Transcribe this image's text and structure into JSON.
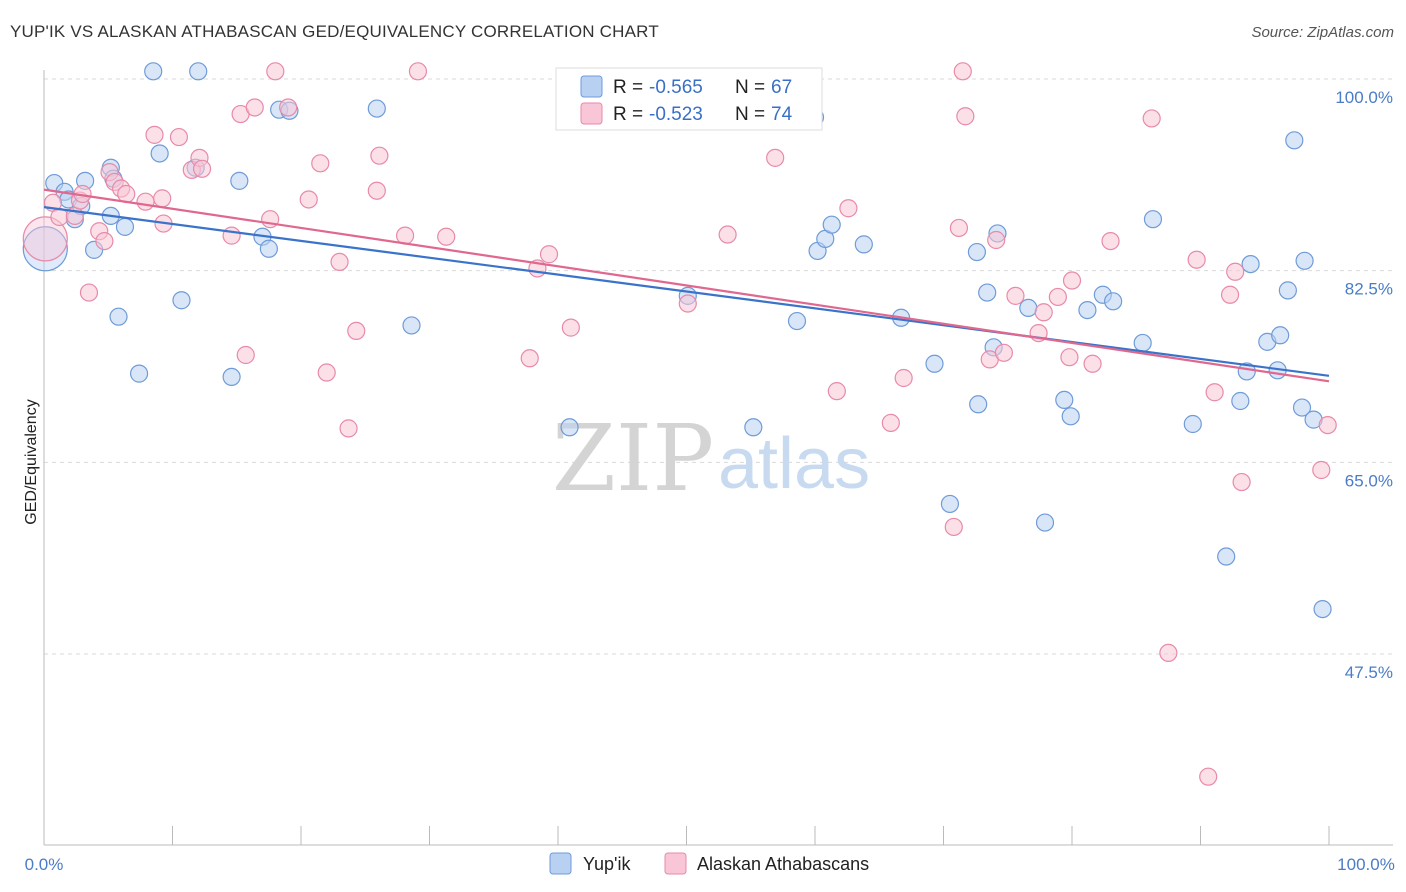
{
  "header": {
    "title": "YUP'IK VS ALASKAN ATHABASCAN GED/EQUIVALENCY CORRELATION CHART",
    "source": "Source: ZipAtlas.com"
  },
  "watermark": {
    "zip": "ZIP",
    "atlas": "atlas"
  },
  "colors": {
    "blue_fill": "#b8d1f3",
    "blue_stroke": "#6f9bd8",
    "blue_line": "#3a73c9",
    "pink_fill": "#f8c6d6",
    "pink_stroke": "#e88aa9",
    "pink_line": "#e0688f",
    "grid": "#d9d9d9",
    "tick_label": "#4a7cc7"
  },
  "chart_data": {
    "type": "scatter",
    "title": "YUP'IK VS ALASKAN ATHABASCAN GED/EQUIVALENCY CORRELATION CHART",
    "xlabel": "",
    "ylabel": "GED/Equivalency",
    "xlim": [
      0,
      100
    ],
    "ylim": [
      28,
      102
    ],
    "x_tick_labels": [
      "0.0%",
      "100.0%"
    ],
    "y_ticks": [
      47.5,
      65.0,
      82.5,
      100.0
    ],
    "y_tick_labels": [
      "47.5%",
      "65.0%",
      "82.5%",
      "100.0%"
    ],
    "grid": true,
    "legend": {
      "position": "top-center",
      "entries": [
        {
          "r_label": "R =",
          "r_value": "-0.565",
          "n_label": "N =",
          "n_value": "67"
        },
        {
          "r_label": "R =",
          "r_value": "-0.523",
          "n_label": "N =",
          "n_value": "74"
        }
      ]
    },
    "series": [
      {
        "name": "Yup'ik",
        "r": -0.565,
        "n": 67,
        "trend": {
          "x": [
            0,
            100
          ],
          "y": [
            88.3,
            72.9
          ]
        },
        "points": [
          {
            "x": 0.1,
            "y": 84.5,
            "big": true
          },
          {
            "x": 0.8,
            "y": 90.5
          },
          {
            "x": 1.6,
            "y": 89.7
          },
          {
            "x": 1.9,
            "y": 89.0
          },
          {
            "x": 2.4,
            "y": 87.2
          },
          {
            "x": 2.9,
            "y": 88.4
          },
          {
            "x": 3.2,
            "y": 90.7
          },
          {
            "x": 3.9,
            "y": 84.4
          },
          {
            "x": 5.2,
            "y": 87.5
          },
          {
            "x": 5.2,
            "y": 91.9
          },
          {
            "x": 5.4,
            "y": 90.9
          },
          {
            "x": 6.3,
            "y": 86.5
          },
          {
            "x": 5.8,
            "y": 78.3
          },
          {
            "x": 7.4,
            "y": 73.1
          },
          {
            "x": 8.5,
            "y": 100.7
          },
          {
            "x": 9.0,
            "y": 93.2
          },
          {
            "x": 10.7,
            "y": 79.8
          },
          {
            "x": 11.8,
            "y": 91.9
          },
          {
            "x": 12.0,
            "y": 100.7
          },
          {
            "x": 14.6,
            "y": 72.8
          },
          {
            "x": 15.2,
            "y": 90.7
          },
          {
            "x": 17.0,
            "y": 85.6
          },
          {
            "x": 17.5,
            "y": 84.5
          },
          {
            "x": 18.3,
            "y": 97.2
          },
          {
            "x": 19.1,
            "y": 97.1
          },
          {
            "x": 25.9,
            "y": 97.3
          },
          {
            "x": 28.6,
            "y": 77.5
          },
          {
            "x": 40.9,
            "y": 68.2
          },
          {
            "x": 50.1,
            "y": 80.2
          },
          {
            "x": 55.2,
            "y": 68.2
          },
          {
            "x": 58.6,
            "y": 77.9
          },
          {
            "x": 60.0,
            "y": 96.5
          },
          {
            "x": 60.2,
            "y": 84.3
          },
          {
            "x": 60.8,
            "y": 85.4
          },
          {
            "x": 61.3,
            "y": 86.7
          },
          {
            "x": 63.8,
            "y": 84.9
          },
          {
            "x": 66.7,
            "y": 78.2
          },
          {
            "x": 69.3,
            "y": 74.0
          },
          {
            "x": 72.6,
            "y": 84.2
          },
          {
            "x": 70.5,
            "y": 61.2
          },
          {
            "x": 72.7,
            "y": 70.3
          },
          {
            "x": 73.4,
            "y": 80.5
          },
          {
            "x": 73.9,
            "y": 75.5
          },
          {
            "x": 74.2,
            "y": 85.9
          },
          {
            "x": 76.6,
            "y": 79.1
          },
          {
            "x": 77.9,
            "y": 59.5
          },
          {
            "x": 79.4,
            "y": 70.7
          },
          {
            "x": 79.9,
            "y": 69.2
          },
          {
            "x": 81.2,
            "y": 78.9
          },
          {
            "x": 82.4,
            "y": 80.3
          },
          {
            "x": 83.2,
            "y": 79.7
          },
          {
            "x": 85.5,
            "y": 75.9
          },
          {
            "x": 86.3,
            "y": 87.2
          },
          {
            "x": 89.4,
            "y": 68.5
          },
          {
            "x": 92.0,
            "y": 56.4
          },
          {
            "x": 93.1,
            "y": 70.6
          },
          {
            "x": 93.6,
            "y": 73.3
          },
          {
            "x": 93.9,
            "y": 83.1
          },
          {
            "x": 95.2,
            "y": 76.0
          },
          {
            "x": 96.0,
            "y": 73.4
          },
          {
            "x": 96.2,
            "y": 76.6
          },
          {
            "x": 96.8,
            "y": 80.7
          },
          {
            "x": 97.3,
            "y": 94.4
          },
          {
            "x": 97.9,
            "y": 70.0
          },
          {
            "x": 98.1,
            "y": 83.4
          },
          {
            "x": 98.8,
            "y": 68.9
          },
          {
            "x": 99.5,
            "y": 51.6
          }
        ]
      },
      {
        "name": "Alaskan Athabascans",
        "r": -0.523,
        "n": 74,
        "trend": {
          "x": [
            0,
            100
          ],
          "y": [
            89.9,
            72.4
          ]
        },
        "points": [
          {
            "x": 0.1,
            "y": 85.4,
            "big": true
          },
          {
            "x": 0.7,
            "y": 88.7
          },
          {
            "x": 1.2,
            "y": 87.4
          },
          {
            "x": 2.4,
            "y": 87.5
          },
          {
            "x": 2.8,
            "y": 88.9
          },
          {
            "x": 3.0,
            "y": 89.5
          },
          {
            "x": 3.5,
            "y": 80.5
          },
          {
            "x": 4.3,
            "y": 86.1
          },
          {
            "x": 4.7,
            "y": 85.2
          },
          {
            "x": 5.1,
            "y": 91.5
          },
          {
            "x": 5.5,
            "y": 90.6
          },
          {
            "x": 6.0,
            "y": 90.0
          },
          {
            "x": 6.4,
            "y": 89.5
          },
          {
            "x": 7.9,
            "y": 88.8
          },
          {
            "x": 8.6,
            "y": 94.9
          },
          {
            "x": 9.2,
            "y": 89.1
          },
          {
            "x": 9.3,
            "y": 86.8
          },
          {
            "x": 10.5,
            "y": 94.7
          },
          {
            "x": 11.5,
            "y": 91.7
          },
          {
            "x": 12.1,
            "y": 92.8
          },
          {
            "x": 12.3,
            "y": 91.8
          },
          {
            "x": 14.6,
            "y": 85.7
          },
          {
            "x": 15.3,
            "y": 96.8
          },
          {
            "x": 15.7,
            "y": 74.8
          },
          {
            "x": 16.4,
            "y": 97.4
          },
          {
            "x": 17.6,
            "y": 87.2
          },
          {
            "x": 18.0,
            "y": 100.7
          },
          {
            "x": 19.0,
            "y": 97.4
          },
          {
            "x": 20.6,
            "y": 89.0
          },
          {
            "x": 21.5,
            "y": 92.3
          },
          {
            "x": 22.0,
            "y": 73.2
          },
          {
            "x": 23.0,
            "y": 83.3
          },
          {
            "x": 23.7,
            "y": 68.1
          },
          {
            "x": 24.3,
            "y": 77.0
          },
          {
            "x": 25.9,
            "y": 89.8
          },
          {
            "x": 26.1,
            "y": 93.0
          },
          {
            "x": 28.1,
            "y": 85.7
          },
          {
            "x": 29.1,
            "y": 100.7
          },
          {
            "x": 31.3,
            "y": 85.6
          },
          {
            "x": 37.8,
            "y": 74.5
          },
          {
            "x": 38.4,
            "y": 82.7
          },
          {
            "x": 39.3,
            "y": 84.0
          },
          {
            "x": 41.0,
            "y": 77.3
          },
          {
            "x": 50.1,
            "y": 79.5
          },
          {
            "x": 53.2,
            "y": 85.8
          },
          {
            "x": 56.9,
            "y": 92.8
          },
          {
            "x": 61.7,
            "y": 71.5
          },
          {
            "x": 62.6,
            "y": 88.2
          },
          {
            "x": 65.9,
            "y": 68.6
          },
          {
            "x": 66.9,
            "y": 72.7
          },
          {
            "x": 70.8,
            "y": 59.1
          },
          {
            "x": 71.2,
            "y": 86.4
          },
          {
            "x": 71.5,
            "y": 100.7
          },
          {
            "x": 71.7,
            "y": 96.6
          },
          {
            "x": 73.6,
            "y": 74.4
          },
          {
            "x": 74.1,
            "y": 85.3
          },
          {
            "x": 74.7,
            "y": 75.0
          },
          {
            "x": 75.6,
            "y": 80.2
          },
          {
            "x": 77.4,
            "y": 76.8
          },
          {
            "x": 77.8,
            "y": 78.7
          },
          {
            "x": 78.9,
            "y": 80.1
          },
          {
            "x": 79.8,
            "y": 74.6
          },
          {
            "x": 80.0,
            "y": 81.6
          },
          {
            "x": 81.6,
            "y": 74.0
          },
          {
            "x": 83.0,
            "y": 85.2
          },
          {
            "x": 86.2,
            "y": 96.4
          },
          {
            "x": 87.5,
            "y": 47.6
          },
          {
            "x": 89.7,
            "y": 83.5
          },
          {
            "x": 90.6,
            "y": 36.3
          },
          {
            "x": 91.1,
            "y": 71.4
          },
          {
            "x": 92.3,
            "y": 80.3
          },
          {
            "x": 92.7,
            "y": 82.4
          },
          {
            "x": 93.2,
            "y": 63.2
          },
          {
            "x": 99.4,
            "y": 64.3
          },
          {
            "x": 99.9,
            "y": 68.4
          }
        ]
      }
    ]
  }
}
